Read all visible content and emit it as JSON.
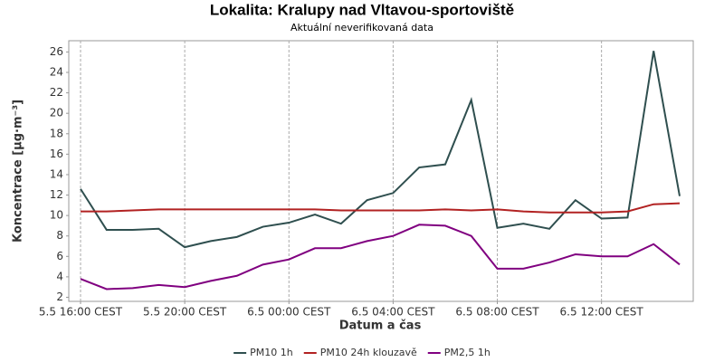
{
  "chart_data": {
    "type": "line",
    "title": "Lokalita: Kralupy nad Vltavou-sportoviště",
    "subtitle": "Aktuální neverifikovaná data",
    "x_label": "Datum a čas",
    "y_label": "Koncentrace [µg·m⁻³]",
    "categories": [
      "5.5 16:00 CEST",
      null,
      null,
      null,
      "5.5 20:00 CEST",
      null,
      null,
      null,
      "6.5 00:00 CEST",
      null,
      null,
      null,
      "6.5 04:00 CEST",
      null,
      null,
      null,
      "6.5 08:00 CEST",
      null,
      null,
      null,
      "6.5 12:00 CEST",
      null,
      null,
      null
    ],
    "series": [
      {
        "name": "PM10 1h",
        "color": "#2f4f4f",
        "values": [
          12.6,
          8.6,
          8.6,
          8.7,
          6.9,
          7.5,
          7.9,
          8.9,
          9.3,
          10.1,
          9.2,
          11.5,
          12.2,
          14.7,
          15.0,
          21.3,
          8.8,
          9.2,
          8.7,
          11.5,
          9.7,
          9.8,
          26.1,
          11.9
        ]
      },
      {
        "name": "PM10 24h klouzavě",
        "color": "#b22222",
        "values": [
          10.4,
          10.4,
          10.5,
          10.6,
          10.6,
          10.6,
          10.6,
          10.6,
          10.6,
          10.6,
          10.5,
          10.5,
          10.5,
          10.5,
          10.6,
          10.5,
          10.6,
          10.4,
          10.3,
          10.3,
          10.3,
          10.4,
          11.1,
          11.2
        ]
      },
      {
        "name": "PM2,5 1h",
        "color": "#800080",
        "values": [
          3.8,
          2.8,
          2.9,
          3.2,
          3.0,
          3.6,
          4.1,
          5.2,
          5.7,
          6.8,
          6.8,
          7.5,
          8.0,
          9.1,
          9.0,
          8.0,
          4.8,
          4.8,
          5.4,
          6.2,
          6.0,
          6.0,
          7.2,
          5.2
        ]
      }
    ],
    "ylim": [
      1.6,
      27.1
    ],
    "yticks": [
      2,
      4,
      6,
      8,
      10,
      12,
      14,
      16,
      18,
      20,
      22,
      24,
      26
    ],
    "grid": "x",
    "legend": "bottom"
  }
}
